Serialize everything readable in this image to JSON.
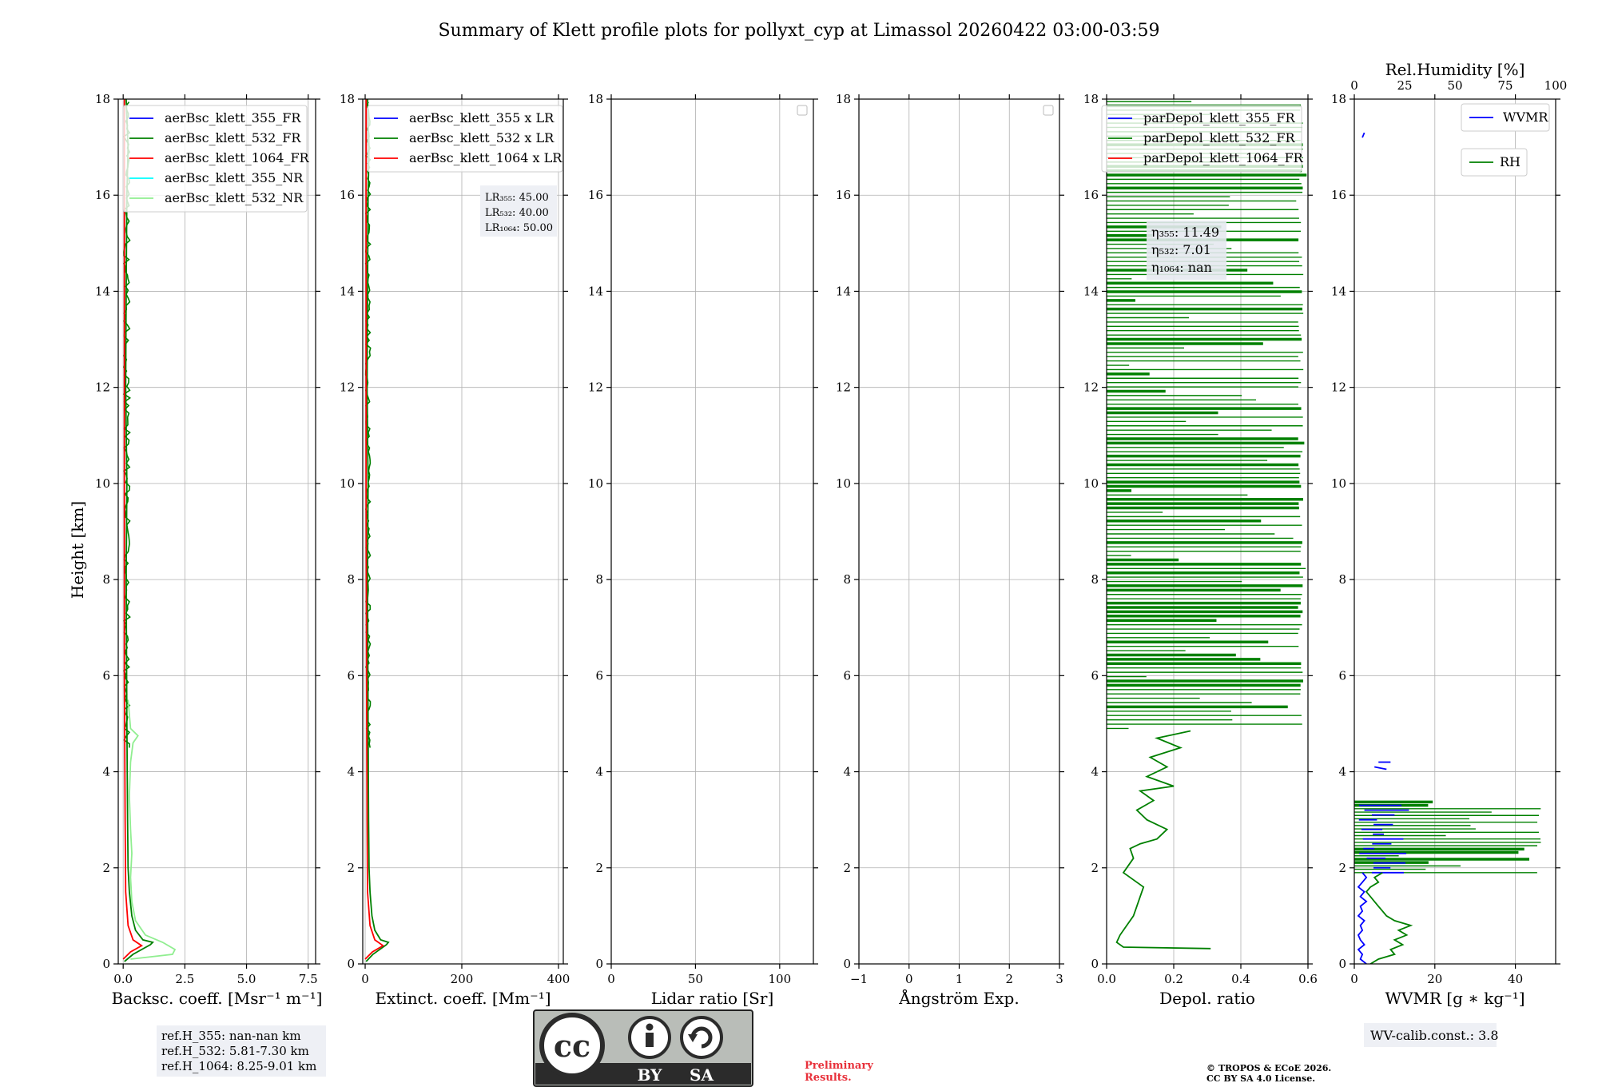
{
  "title": "Summary of Klett profile plots for pollyxt_cyp at Limassol 20260422 03:00-03:59",
  "ylabel": "Height [km]",
  "yticks": [
    "0",
    "2",
    "4",
    "6",
    "8",
    "10",
    "12",
    "14",
    "16",
    "18"
  ],
  "ylim": [
    0,
    18
  ],
  "colors": {
    "c355": "#0000ff",
    "c532": "#008000",
    "c1064": "#ff0000",
    "c355nr": "#00ffff",
    "c532nr": "#90ee90"
  },
  "chart_data": [
    {
      "type": "line",
      "xlabel": "Backsc. coeff. [Msr⁻¹ m⁻¹]",
      "xlim": [
        -0.2,
        7.8
      ],
      "xticks": [
        "0.0",
        "2.5",
        "5.0",
        "7.5"
      ],
      "xtick_values": [
        0,
        2.5,
        5,
        7.5
      ],
      "legend": [
        "aerBsc_klett_355_FR",
        "aerBsc_klett_532_FR",
        "aerBsc_klett_1064_FR",
        "aerBsc_klett_355_NR",
        "aerBsc_klett_532_NR"
      ],
      "series": [
        {
          "name": "aerBsc_klett_532_NR",
          "color_key": "c532nr",
          "points": [
            [
              0.3,
              0.1
            ],
            [
              2.0,
              0.2
            ],
            [
              2.1,
              0.3
            ],
            [
              1.6,
              0.45
            ],
            [
              0.9,
              0.6
            ],
            [
              0.5,
              0.9
            ],
            [
              0.35,
              1.3
            ],
            [
              0.3,
              1.8
            ],
            [
              0.35,
              2.3
            ],
            [
              0.3,
              2.8
            ],
            [
              0.25,
              3.5
            ],
            [
              0.3,
              4.2
            ],
            [
              0.4,
              4.6
            ],
            [
              0.6,
              4.75
            ],
            [
              0.3,
              4.9
            ],
            [
              0.2,
              5.5
            ]
          ]
        },
        {
          "name": "aerBsc_klett_532_FR",
          "color_key": "c532",
          "points": [
            [
              0.05,
              0.05
            ],
            [
              0.4,
              0.2
            ],
            [
              1.1,
              0.4
            ],
            [
              1.2,
              0.45
            ],
            [
              0.8,
              0.5
            ],
            [
              0.5,
              0.7
            ],
            [
              0.35,
              1.0
            ],
            [
              0.25,
              1.5
            ],
            [
              0.2,
              2.0
            ],
            [
              0.18,
              3.0
            ],
            [
              0.15,
              5.0
            ],
            [
              0.12,
              8.0
            ],
            [
              0.15,
              10.0
            ],
            [
              0.1,
              12.0
            ],
            [
              0.12,
              14.0
            ],
            [
              0.15,
              16.0
            ],
            [
              0.2,
              17.0
            ],
            [
              0.12,
              18.0
            ]
          ]
        },
        {
          "name": "aerBsc_klett_1064_FR",
          "color_key": "c1064",
          "points": [
            [
              0.0,
              0.1
            ],
            [
              0.3,
              0.25
            ],
            [
              0.75,
              0.38
            ],
            [
              0.4,
              0.5
            ],
            [
              0.2,
              0.8
            ],
            [
              0.1,
              1.5
            ],
            [
              0.08,
              3.0
            ],
            [
              0.05,
              6.0
            ],
            [
              0.05,
              10.0
            ],
            [
              0.05,
              14.0
            ],
            [
              0.05,
              18.0
            ]
          ]
        }
      ],
      "noise_series": {
        "color_key": "c532",
        "from": 4.5,
        "to": 18,
        "amp": 0.25,
        "base": 0.1
      }
    },
    {
      "type": "line",
      "xlabel": "Extinct. coeff. [Mm⁻¹]",
      "xlim": [
        -5,
        410
      ],
      "xticks": [
        "0",
        "200",
        "400"
      ],
      "xtick_values": [
        0,
        200,
        400
      ],
      "legend": [
        "aerBsc_klett_355 x LR",
        "aerBsc_klett_532 x LR",
        "aerBsc_klett_1064 x LR"
      ],
      "lr_box": [
        "LR₃₅₅: 45.00",
        "LR₅₃₂: 40.00",
        "LR₁₀₆₄: 50.00"
      ],
      "series": [
        {
          "name": "aerBsc_klett_532 x LR",
          "color_key": "c532",
          "points": [
            [
              2,
              0.05
            ],
            [
              16,
              0.2
            ],
            [
              44,
              0.4
            ],
            [
              48,
              0.45
            ],
            [
              32,
              0.5
            ],
            [
              20,
              0.7
            ],
            [
              14,
              1.0
            ],
            [
              10,
              1.5
            ],
            [
              8,
              2.0
            ],
            [
              7,
              3.0
            ],
            [
              6,
              5.0
            ],
            [
              5,
              8.0
            ],
            [
              6,
              10.0
            ],
            [
              4,
              12.0
            ],
            [
              5,
              14.0
            ],
            [
              6,
              16.0
            ],
            [
              8,
              17.0
            ],
            [
              5,
              18.0
            ]
          ]
        },
        {
          "name": "aerBsc_klett_1064 x LR",
          "color_key": "c1064",
          "points": [
            [
              0,
              0.1
            ],
            [
              15,
              0.25
            ],
            [
              37,
              0.38
            ],
            [
              20,
              0.5
            ],
            [
              10,
              0.8
            ],
            [
              5,
              1.5
            ],
            [
              4,
              3.0
            ],
            [
              3,
              6.0
            ],
            [
              2,
              10.0
            ],
            [
              2,
              14.0
            ],
            [
              2,
              18.0
            ]
          ]
        }
      ],
      "noise_series": {
        "color_key": "c532",
        "from": 4.5,
        "to": 18,
        "amp": 10,
        "base": 4
      }
    },
    {
      "type": "line",
      "xlabel": "Lidar ratio [Sr]",
      "xlim": [
        0,
        120
      ],
      "xticks": [
        "0",
        "50",
        "100"
      ],
      "xtick_values": [
        0,
        50,
        100
      ],
      "series": []
    },
    {
      "type": "line",
      "xlabel": "Ångström Exp.",
      "xlim": [
        -1,
        3
      ],
      "xticks": [
        "−1",
        "0",
        "1",
        "2",
        "3"
      ],
      "xtick_values": [
        -1,
        0,
        1,
        2,
        3
      ],
      "series": []
    },
    {
      "type": "line",
      "xlabel": "Depol. ratio",
      "xlim": [
        0,
        0.6
      ],
      "xticks": [
        "0.0",
        "0.2",
        "0.4",
        "0.6"
      ],
      "xtick_values": [
        0,
        0.2,
        0.4,
        0.6
      ],
      "legend": [
        "parDepol_klett_355_FR",
        "parDepol_klett_532_FR",
        "parDepol_klett_1064_FR"
      ],
      "eta_box": [
        "η₃₅₅: 11.49",
        "η₅₃₂: 7.01",
        "η₁₀₆₄: nan"
      ],
      "series": [
        {
          "name": "parDepol_klett_532_FR",
          "color_key": "c532",
          "points": [
            [
              0.31,
              0.32
            ],
            [
              0.05,
              0.35
            ],
            [
              0.03,
              0.45
            ],
            [
              0.04,
              0.6
            ],
            [
              0.06,
              0.8
            ],
            [
              0.08,
              1.0
            ],
            [
              0.09,
              1.2
            ],
            [
              0.1,
              1.4
            ],
            [
              0.11,
              1.6
            ],
            [
              0.09,
              1.7
            ],
            [
              0.07,
              1.8
            ],
            [
              0.05,
              1.9
            ],
            [
              0.06,
              2.0
            ],
            [
              0.08,
              2.2
            ],
            [
              0.07,
              2.4
            ],
            [
              0.1,
              2.5
            ],
            [
              0.15,
              2.6
            ],
            [
              0.18,
              2.8
            ],
            [
              0.12,
              3.0
            ],
            [
              0.09,
              3.2
            ],
            [
              0.14,
              3.4
            ],
            [
              0.1,
              3.6
            ],
            [
              0.2,
              3.7
            ],
            [
              0.12,
              3.9
            ],
            [
              0.18,
              4.1
            ],
            [
              0.13,
              4.3
            ],
            [
              0.22,
              4.5
            ],
            [
              0.15,
              4.7
            ],
            [
              0.25,
              4.85
            ]
          ]
        }
      ],
      "hbar_series": {
        "color_key": "c532",
        "from": 4.9,
        "to": 18,
        "step": 0.09,
        "max": 0.6
      }
    },
    {
      "type": "line",
      "xlabel": "WVMR [g ∗ kg⁻¹]",
      "xlim": [
        0,
        50
      ],
      "xticks": [
        "0",
        "20",
        "40"
      ],
      "xtick_values": [
        0,
        20,
        40
      ],
      "top_label": "Rel.Humidity [%]",
      "top_ticks": [
        "0",
        "25",
        "50",
        "75",
        "100"
      ],
      "top_tick_values": [
        0,
        25,
        50,
        75,
        100
      ],
      "legend_wvmr": "WVMR",
      "legend_rh": "RH",
      "series": [
        {
          "name": "RH",
          "color_key": "c532",
          "axis": "top",
          "points": [
            [
              8,
              0.0
            ],
            [
              12,
              0.1
            ],
            [
              20,
              0.2
            ],
            [
              18,
              0.3
            ],
            [
              24,
              0.4
            ],
            [
              20,
              0.5
            ],
            [
              26,
              0.6
            ],
            [
              22,
              0.7
            ],
            [
              28,
              0.8
            ],
            [
              20,
              0.9
            ],
            [
              16,
              1.0
            ],
            [
              14,
              1.1
            ],
            [
              12,
              1.2
            ],
            [
              10,
              1.3
            ],
            [
              8,
              1.4
            ],
            [
              6,
              1.5
            ],
            [
              8,
              1.6
            ],
            [
              12,
              1.7
            ],
            [
              10,
              1.8
            ],
            [
              14,
              1.9
            ]
          ]
        },
        {
          "name": "WVMR",
          "color_key": "c355",
          "points": [
            [
              3,
              0.0
            ],
            [
              1.5,
              0.1
            ],
            [
              2,
              0.2
            ],
            [
              1,
              0.3
            ],
            [
              2.5,
              0.4
            ],
            [
              1.5,
              0.5
            ],
            [
              1,
              0.6
            ],
            [
              2,
              0.7
            ],
            [
              1.5,
              0.8
            ],
            [
              2.5,
              0.9
            ],
            [
              1,
              1.0
            ],
            [
              2,
              1.1
            ],
            [
              1.5,
              1.2
            ],
            [
              3,
              1.3
            ],
            [
              1.5,
              1.4
            ],
            [
              2.5,
              1.5
            ],
            [
              1,
              1.6
            ],
            [
              2,
              1.7
            ],
            [
              3,
              1.8
            ],
            [
              2,
              1.9
            ]
          ]
        }
      ],
      "hbar_series": {
        "color_key": "c532",
        "from": 1.9,
        "to": 3.4,
        "step": 0.07,
        "max": 50
      },
      "wv_dashes": {
        "color_key": "c355",
        "from": 1.9,
        "to": 3.4,
        "step": 0.1,
        "max": 12
      },
      "wv_points": [
        [
          2.0,
          17.2
        ],
        [
          2.5,
          17.3
        ],
        [
          6.0,
          4.2
        ],
        [
          9.0,
          4.2
        ],
        [
          5.0,
          4.1
        ],
        [
          8.0,
          4.05
        ]
      ],
      "wv_box": "WV-calib.const.: 3.8"
    }
  ],
  "ref_box": [
    "ref.H_355: nan-nan km",
    "ref.H_532: 5.81-7.30 km",
    "ref.H_1064: 8.25-9.01 km"
  ],
  "license": {
    "cc": "cc",
    "by": "BY",
    "sa": "SA"
  },
  "preliminary": [
    "Preliminary",
    "Results."
  ],
  "copyright": [
    "© TROPOS & ECoE 2026.",
    "CC BY SA 4.0 License."
  ]
}
